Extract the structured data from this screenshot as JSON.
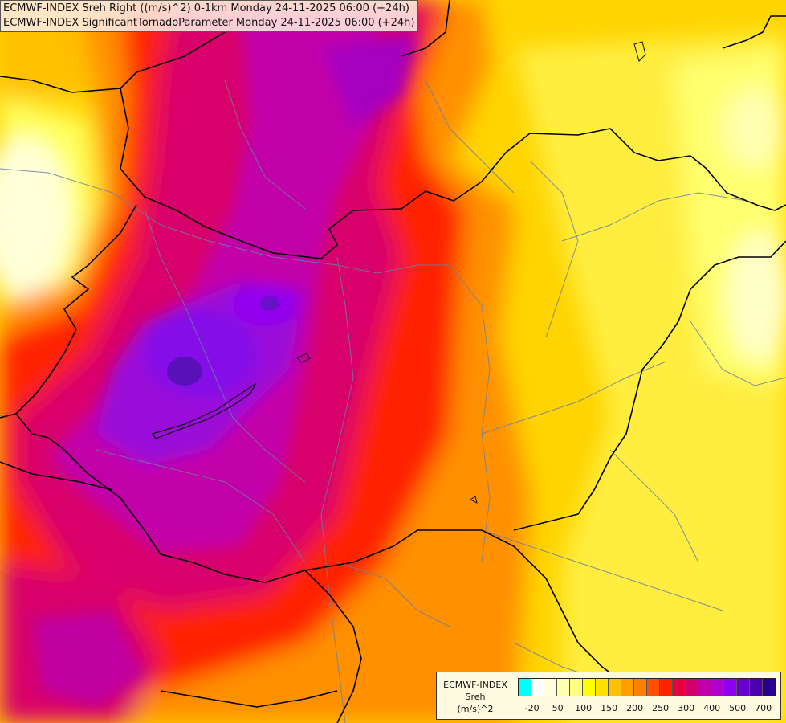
{
  "title": {
    "line1": "ECMWF-INDEX Sreh Right ((m/s)^2) 0-1km Monday 24-11-2025 06:00 (+24h)",
    "line2": "ECMWF-INDEX SignificantTornadoParameter Monday 24-11-2025 06:00 (+24h)"
  },
  "legend": {
    "model": "ECMWF-INDEX",
    "variable": "Sreh",
    "unit": "(m/s)^2",
    "colors": [
      "#00ffff",
      "#ffffff",
      "#ffffe0",
      "#ffffb0",
      "#ffff80",
      "#ffff00",
      "#ffe000",
      "#ffc000",
      "#ffa000",
      "#ff8000",
      "#ff5000",
      "#ff2000",
      "#e8003c",
      "#d0006e",
      "#c000a8",
      "#b000d0",
      "#9000f0",
      "#6a00d0",
      "#4a00b0",
      "#2a0090"
    ],
    "ticks": [
      "-20",
      "50",
      "100",
      "150",
      "200",
      "250",
      "300",
      "400",
      "500",
      "700"
    ]
  }
}
